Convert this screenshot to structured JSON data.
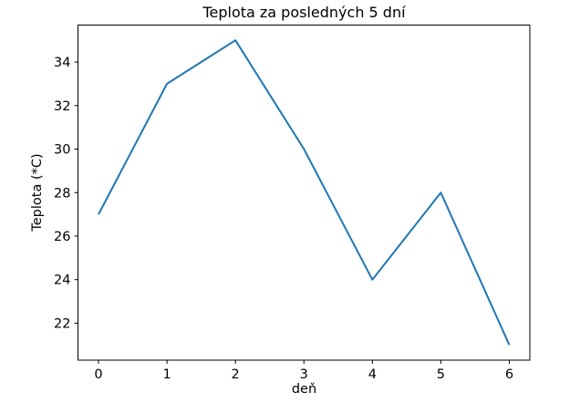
{
  "chart_data": {
    "type": "line",
    "title": "Teplota za posledných 5 dní",
    "xlabel": "deň",
    "ylabel": "Teplota (*C)",
    "x": [
      0,
      1,
      2,
      3,
      4,
      5,
      6
    ],
    "y": [
      27,
      33,
      35,
      30,
      24,
      28,
      21
    ],
    "xticks": [
      0,
      1,
      2,
      3,
      4,
      5,
      6
    ],
    "yticks": [
      22,
      24,
      26,
      28,
      30,
      32,
      34
    ],
    "xlim": [
      -0.3,
      6.3
    ],
    "ylim": [
      20.3,
      35.7
    ],
    "grid": false,
    "legend": null,
    "line_color": "#1f77b4",
    "axis_color": "#000000",
    "text_color": "#000000",
    "background_color": "#ffffff"
  }
}
